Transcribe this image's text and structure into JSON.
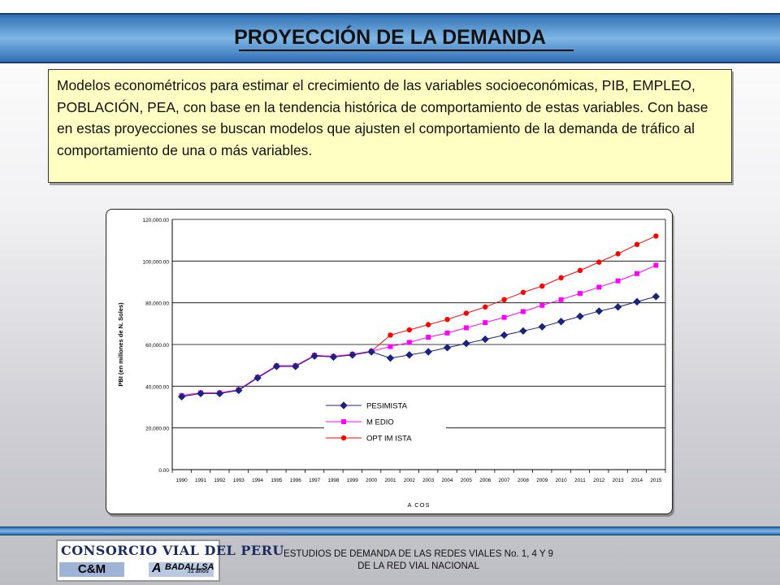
{
  "header": {
    "title": "PROYECCIÓN DE LA DEMANDA"
  },
  "description": "Modelos econométricos para estimar el crecimiento de las variables socioeconómicas, PIB, EMPLEO, POBLACIÓN, PEA, con base en la tendencia histórica de comportamiento de estas variables. Con base en estas proyecciones se buscan modelos que ajusten el comportamiento de la demanda de tráfico al comportamiento de una o más variables.",
  "chart_data": {
    "type": "line",
    "xlabel": "A COS",
    "ylabel": "PBI (en millones de N. Soles)",
    "ylim": [
      0,
      120000
    ],
    "yticks": [
      "0.00",
      "20,000.00",
      "40,000.00",
      "60,000.00",
      "80,000.00",
      "100,000.00",
      "120,000.00"
    ],
    "ytick_values": [
      0,
      20000,
      40000,
      60000,
      80000,
      100000,
      120000
    ],
    "grid": "horizontal",
    "legend_position": "lower-center",
    "categories": [
      "1990",
      "1991",
      "1992",
      "1993",
      "1994",
      "1995",
      "1996",
      "1997",
      "1998",
      "1999",
      "2000",
      "2001",
      "2002",
      "2003",
      "2004",
      "2005",
      "2006",
      "2007",
      "2008",
      "2009",
      "2010",
      "2011",
      "2012",
      "2013",
      "2014",
      "2015"
    ],
    "series": [
      {
        "name": "PESIMISTA",
        "color": "#1a237e",
        "marker": "diamond",
        "values": [
          35000,
          36500,
          36500,
          38000,
          44000,
          49500,
          49500,
          54500,
          54000,
          55000,
          56500,
          53500,
          55000,
          56500,
          58500,
          60500,
          62500,
          64500,
          66500,
          68500,
          71000,
          73500,
          76000,
          78000,
          80500,
          83000
        ]
      },
      {
        "name": "M EDIO",
        "color": "#ff00ff",
        "marker": "square",
        "values": [
          35500,
          36800,
          36800,
          38300,
          44300,
          49800,
          49800,
          54800,
          54300,
          55300,
          56800,
          59000,
          61000,
          63500,
          65500,
          68000,
          70500,
          73000,
          75800,
          78800,
          81500,
          84500,
          87500,
          90500,
          94000,
          98000
        ]
      },
      {
        "name": "OPT IM ISTA",
        "color": "#ff0000",
        "marker": "circle",
        "values": [
          35500,
          36800,
          36800,
          38300,
          44300,
          49800,
          49800,
          54800,
          54300,
          55300,
          56800,
          64500,
          67000,
          69500,
          72000,
          75000,
          78000,
          81500,
          85000,
          88000,
          92000,
          95500,
          99500,
          103500,
          108000,
          112000
        ]
      }
    ]
  },
  "footer": {
    "line1": "ESTUDIOS DE DEMANDA DE LAS REDES VIALES No. 1, 4 Y 9",
    "line2": "DE LA RED VIAL NACIONAL",
    "logo_top": "CONSORCIO VIAL DEL PERU",
    "logo_left": "C&M",
    "logo_right": "BADALLSA",
    "logo_years": "31 años"
  }
}
